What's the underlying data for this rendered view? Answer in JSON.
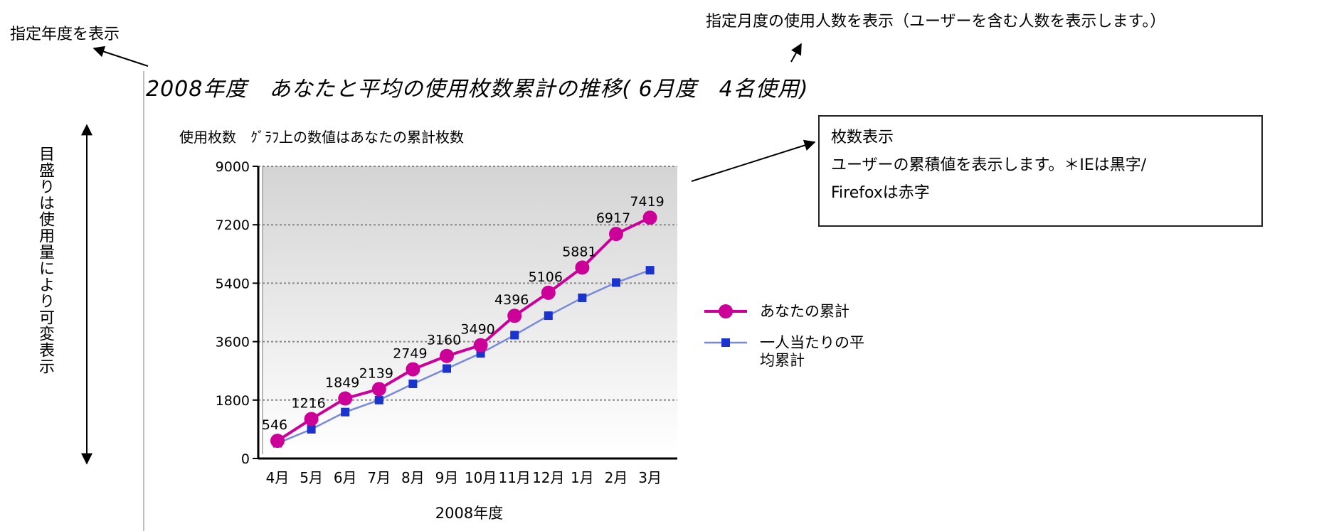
{
  "annotations": {
    "year_label": "指定年度を表示",
    "month_label": "指定月度の使用人数を表示（ユーザーを含む人数を表示します。）",
    "vertical_label": "目盛りは使用量により可変表示",
    "info_box": {
      "title": "枚数表示",
      "line1": "ユーザーの累積値を表示します。＊IEは黒字/",
      "line2": "Firefoxは赤字"
    }
  },
  "chart_data": {
    "type": "line",
    "title": "2008年度　あなたと平均の使用枚数累計の推移( 6月度　4名使用)",
    "ylabel_note": "使用枚数　ｸﾞﾗﾌ上の数値はあなたの累計枚数",
    "xlabel": "2008年度",
    "categories": [
      "4月",
      "5月",
      "6月",
      "7月",
      "8月",
      "9月",
      "10月",
      "11月",
      "12月",
      "1月",
      "2月",
      "3月"
    ],
    "ylim": [
      0,
      9000
    ],
    "yticks": [
      0,
      1800,
      3600,
      5400,
      7200,
      9000
    ],
    "grid": true,
    "legend_position": "right",
    "series": [
      {
        "name": "あなたの累計",
        "color": "#cc0099",
        "marker": "circle",
        "values": [
          546,
          1216,
          1849,
          2139,
          2749,
          3160,
          3490,
          4396,
          5106,
          5881,
          6917,
          7419
        ],
        "data_labels": [
          "546",
          "1216",
          "1849",
          "2139",
          "2749",
          "3160",
          "3490",
          "4396",
          "5106",
          "5881",
          "6917",
          "7419"
        ]
      },
      {
        "name": "一人当たりの平\n均累計",
        "color": "#1a33cc",
        "line_color": "#7788dd",
        "marker": "square",
        "values": [
          470,
          900,
          1430,
          1800,
          2300,
          2770,
          3240,
          3800,
          4400,
          4950,
          5420,
          5800
        ]
      }
    ]
  }
}
